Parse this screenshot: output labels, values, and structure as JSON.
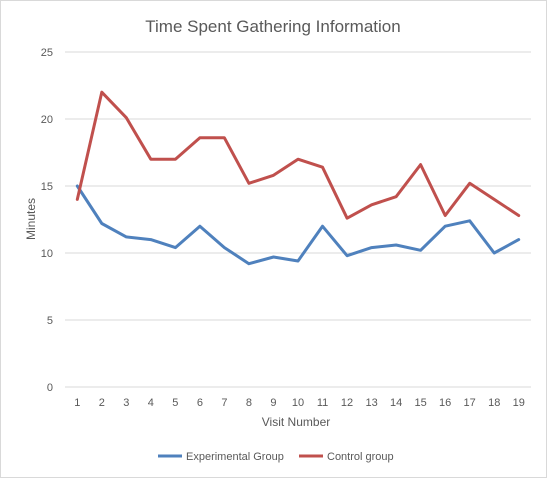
{
  "chart_data": {
    "type": "line",
    "title": "Time Spent Gathering Information",
    "xlabel": "Visit Number",
    "ylabel": "Minutes",
    "ylim": [
      0,
      25
    ],
    "yticks": [
      0,
      5,
      10,
      15,
      20,
      25
    ],
    "categories": [
      "1",
      "2",
      "3",
      "4",
      "5",
      "6",
      "7",
      "8",
      "9",
      "10",
      "11",
      "12",
      "13",
      "14",
      "15",
      "16",
      "17",
      "18",
      "19"
    ],
    "grid": true,
    "legend_position": "bottom",
    "series": [
      {
        "name": "Experimental Group",
        "color": "#4f81bd",
        "values": [
          15.0,
          12.2,
          11.2,
          11.0,
          10.4,
          12.0,
          10.4,
          9.2,
          9.7,
          9.4,
          12.0,
          9.8,
          10.4,
          10.6,
          10.2,
          12.0,
          12.4,
          10.0,
          11.0
        ]
      },
      {
        "name": "Control group",
        "color": "#c0504d",
        "values": [
          14.0,
          22.0,
          20.1,
          17.0,
          17.0,
          18.6,
          18.6,
          15.2,
          15.8,
          17.0,
          16.4,
          12.6,
          13.6,
          14.2,
          16.6,
          12.8,
          15.2,
          14.0,
          12.8
        ]
      }
    ]
  }
}
